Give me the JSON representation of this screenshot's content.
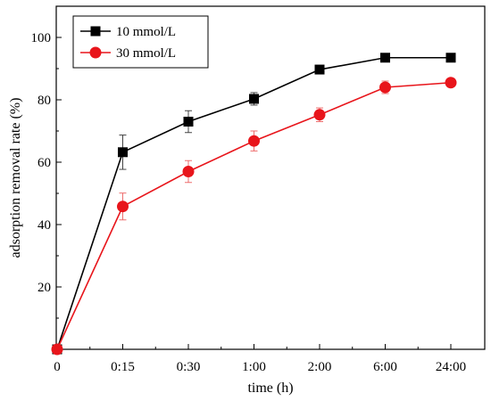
{
  "chart_data": {
    "type": "line",
    "title": "",
    "xlabel": "time (h)",
    "ylabel": "adsorption removal rate (%)",
    "categories": [
      "0",
      "0:15",
      "0:30",
      "1:00",
      "2:00",
      "6:00",
      "24:00"
    ],
    "ylim": [
      0,
      110
    ],
    "yticks": [
      0,
      20,
      40,
      60,
      80,
      100
    ],
    "grid": false,
    "legend_position": "top-left",
    "series": [
      {
        "name": "10 mmol/L",
        "color": "#000000",
        "marker": "square",
        "values": [
          0,
          63.2,
          73.0,
          80.3,
          89.7,
          93.5,
          93.5
        ],
        "errors": [
          0,
          5.5,
          3.5,
          2.0,
          1.2,
          0.8,
          0.6
        ]
      },
      {
        "name": "30 mmol/L",
        "color": "#e8151b",
        "marker": "circle",
        "values": [
          0,
          45.8,
          57.0,
          66.8,
          75.2,
          84.0,
          85.5
        ],
        "errors": [
          0,
          4.3,
          3.5,
          3.2,
          2.2,
          2.0,
          1.0
        ]
      }
    ]
  }
}
